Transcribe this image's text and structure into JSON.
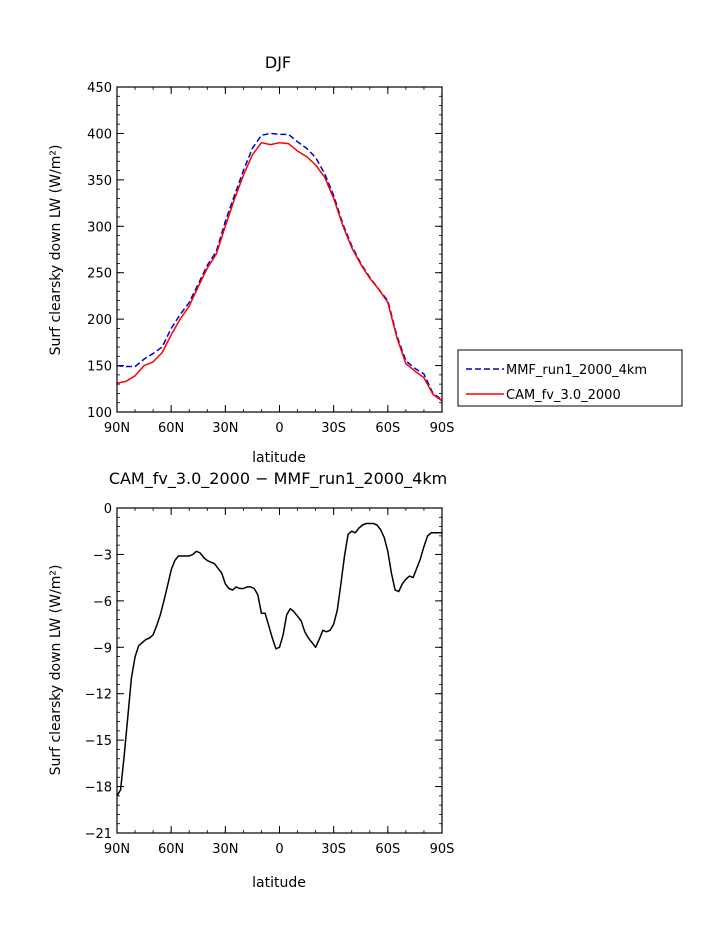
{
  "chart_data": [
    {
      "type": "line",
      "title": "DJF",
      "xlabel": "latitude",
      "ylabel": "Surf clearsky down LW (W/m²)",
      "xlim": [
        90,
        -90
      ],
      "ylim": [
        100,
        450
      ],
      "yticks": [
        100,
        150,
        200,
        250,
        300,
        350,
        400,
        450
      ],
      "xticks": [
        90,
        60,
        30,
        0,
        -30,
        -60,
        -90
      ],
      "xtick_labels": [
        "90N",
        "60N",
        "30N",
        "0",
        "30S",
        "60S",
        "90S"
      ],
      "legend": "right",
      "series": [
        {
          "name": "MMF_run1_2000_4km",
          "color": "#0000cc",
          "dash": "dashed",
          "x": [
            90,
            85,
            80,
            75,
            70,
            65,
            60,
            55,
            50,
            45,
            40,
            35,
            30,
            25,
            20,
            15,
            10,
            5,
            0,
            -5,
            -10,
            -15,
            -20,
            -25,
            -30,
            -35,
            -40,
            -45,
            -50,
            -55,
            -60,
            -65,
            -70,
            -75,
            -80,
            -85,
            -90
          ],
          "y": [
            150,
            149,
            149,
            157,
            163,
            170,
            190,
            205,
            218,
            238,
            258,
            273,
            305,
            333,
            360,
            384,
            398,
            400,
            399,
            399,
            391,
            384,
            374,
            357,
            333,
            303,
            279,
            260,
            245,
            232,
            220,
            182,
            155,
            147,
            141,
            120,
            113
          ]
        },
        {
          "name": "CAM_fv_3.0_2000",
          "color": "#ff0000",
          "dash": "solid",
          "x": [
            90,
            85,
            80,
            75,
            70,
            65,
            60,
            55,
            50,
            45,
            40,
            35,
            30,
            25,
            20,
            15,
            10,
            5,
            0,
            -5,
            -10,
            -15,
            -20,
            -25,
            -30,
            -35,
            -40,
            -45,
            -50,
            -55,
            -60,
            -65,
            -70,
            -75,
            -80,
            -85,
            -90
          ],
          "y": [
            131,
            133,
            139,
            150,
            154,
            164,
            183,
            200,
            214,
            235,
            255,
            270,
            300,
            329,
            355,
            377,
            390,
            388,
            390,
            389,
            381,
            375,
            366,
            353,
            330,
            301,
            277,
            259,
            244,
            232,
            218,
            180,
            152,
            144,
            137,
            119,
            112
          ]
        }
      ]
    },
    {
      "type": "line",
      "title": "CAM_fv_3.0_2000 − MMF_run1_2000_4km",
      "xlabel": "latitude",
      "ylabel": "Surf clearsky down LW (W/m²)",
      "xlim": [
        90,
        -90
      ],
      "ylim": [
        -21,
        0
      ],
      "yticks": [
        0,
        -3,
        -6,
        -9,
        -12,
        -15,
        -18,
        -21
      ],
      "xticks": [
        90,
        60,
        30,
        0,
        -30,
        -60,
        -90
      ],
      "xtick_labels": [
        "90N",
        "60N",
        "30N",
        "0",
        "30S",
        "60S",
        "90S"
      ],
      "series": [
        {
          "color": "#000000",
          "dash": "solid",
          "x": [
            90,
            88,
            86,
            84,
            82,
            80,
            78,
            76,
            74,
            72,
            70,
            68,
            66,
            64,
            62,
            60,
            58,
            56,
            54,
            52,
            50,
            48,
            46,
            44,
            42,
            40,
            38,
            36,
            34,
            32,
            30,
            28,
            26,
            24,
            22,
            20,
            18,
            16,
            14,
            12,
            10,
            8,
            6,
            4,
            2,
            0,
            -2,
            -4,
            -6,
            -8,
            -10,
            -12,
            -14,
            -16,
            -18,
            -20,
            -22,
            -24,
            -26,
            -28,
            -30,
            -32,
            -34,
            -36,
            -38,
            -40,
            -42,
            -44,
            -46,
            -48,
            -50,
            -52,
            -54,
            -56,
            -58,
            -60,
            -62,
            -64,
            -66,
            -68,
            -70,
            -72,
            -74,
            -76,
            -78,
            -80,
            -82,
            -84,
            -86,
            -88,
            -90
          ],
          "y": [
            -18.6,
            -18.2,
            -16.0,
            -13.5,
            -11.0,
            -9.6,
            -8.9,
            -8.7,
            -8.5,
            -8.4,
            -8.2,
            -7.6,
            -6.9,
            -6.0,
            -5.0,
            -4.0,
            -3.4,
            -3.1,
            -3.1,
            -3.1,
            -3.1,
            -3.0,
            -2.8,
            -2.9,
            -3.2,
            -3.4,
            -3.5,
            -3.6,
            -3.9,
            -4.2,
            -4.9,
            -5.2,
            -5.3,
            -5.1,
            -5.2,
            -5.2,
            -5.1,
            -5.1,
            -5.2,
            -5.6,
            -6.8,
            -6.8,
            -7.6,
            -8.4,
            -9.1,
            -9.0,
            -8.2,
            -6.9,
            -6.5,
            -6.7,
            -7.0,
            -7.3,
            -8.0,
            -8.4,
            -8.7,
            -9.0,
            -8.5,
            -7.9,
            -8.0,
            -7.9,
            -7.5,
            -6.6,
            -4.9,
            -3.1,
            -1.7,
            -1.5,
            -1.6,
            -1.3,
            -1.1,
            -1.0,
            -1.0,
            -1.0,
            -1.1,
            -1.4,
            -1.9,
            -2.8,
            -4.2,
            -5.3,
            -5.4,
            -4.9,
            -4.6,
            -4.4,
            -4.5,
            -3.9,
            -3.3,
            -2.5,
            -1.8,
            -1.6,
            -1.6,
            -1.6,
            -1.6
          ]
        }
      ]
    }
  ]
}
